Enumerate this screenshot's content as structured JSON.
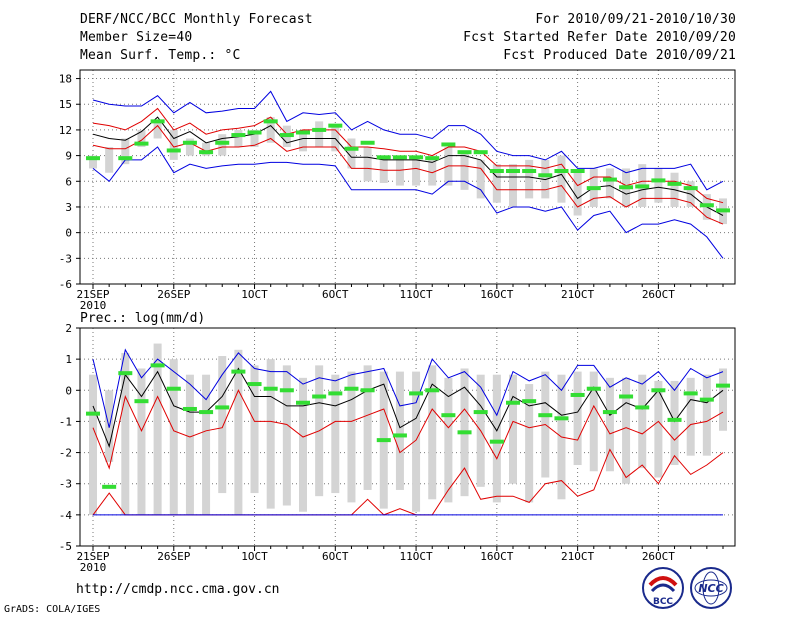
{
  "header": {
    "title": "DERF/NCC/BCC Monthly Forecast",
    "member_size": "Member Size=40",
    "variable": "Mean Surf. Temp.: °C",
    "period": "For 2010/09/21-2010/10/30",
    "started": "Fcst Started Refer Date 2010/09/20",
    "produced": "Fcst Produced Date 2010/09/21"
  },
  "footer": {
    "url": "http://cmdp.ncc.cma.gov.cn",
    "grads": "GrADS: COLA/IGES",
    "logo_bcc_text": "BCC",
    "logo_ncc_text": "NCC"
  },
  "colors": {
    "box": "#d4d4d4",
    "mean": "#000000",
    "inner_band": "#e00000",
    "outer_band": "#0000e0",
    "observed": "#33dd33",
    "grid": "#777777"
  },
  "chart_data": [
    {
      "type": "line",
      "name": "temperature",
      "title": "Mean Surf. Temp.: °C",
      "xlabel": "",
      "ylabel": "",
      "ylim": [
        -6,
        19
      ],
      "yticks": [
        -6,
        -3,
        0,
        3,
        6,
        9,
        12,
        15,
        18
      ],
      "x": [
        1,
        2,
        3,
        4,
        5,
        6,
        7,
        8,
        9,
        10,
        11,
        12,
        13,
        14,
        15,
        16,
        17,
        18,
        19,
        20,
        21,
        22,
        23,
        24,
        25,
        26,
        27,
        28,
        29,
        30,
        31,
        32,
        33,
        34,
        35,
        36,
        37,
        38,
        39,
        40
      ],
      "xticks": [
        {
          "x": 1,
          "label": "21SEP",
          "sub": "2010"
        },
        {
          "x": 6,
          "label": "26SEP",
          "sub": ""
        },
        {
          "x": 11,
          "label": "1OCT",
          "sub": ""
        },
        {
          "x": 16,
          "label": "6OCT",
          "sub": ""
        },
        {
          "x": 21,
          "label": "11OCT",
          "sub": ""
        },
        {
          "x": 26,
          "label": "16OCT",
          "sub": ""
        },
        {
          "x": 31,
          "label": "21OCT",
          "sub": ""
        },
        {
          "x": 36,
          "label": "26OCT",
          "sub": ""
        }
      ],
      "box_low": [
        7.5,
        7,
        8,
        10,
        11,
        8.5,
        9,
        9,
        9,
        10,
        10,
        10.5,
        10,
        9.5,
        10,
        9.5,
        7.5,
        6,
        5.8,
        5.5,
        5.5,
        5.5,
        5.5,
        5,
        4,
        3.5,
        3,
        4,
        4,
        3.5,
        2,
        3,
        4,
        3,
        3,
        3.5,
        3,
        3,
        1.5,
        1
      ],
      "box_high": [
        9,
        10,
        11,
        12,
        13,
        12,
        11,
        10.5,
        11.5,
        12,
        12,
        13.5,
        12.5,
        12,
        13,
        12.5,
        11,
        10,
        9,
        9,
        9,
        9,
        10,
        9.5,
        8.5,
        8,
        8,
        8.5,
        8.5,
        9,
        7,
        7.5,
        7.5,
        7.5,
        8,
        7.5,
        7,
        6,
        4.5,
        4
      ],
      "series": [
        {
          "name": "upper-blue",
          "values": [
            15.5,
            15,
            14.8,
            14.8,
            16,
            14,
            15.2,
            14,
            14.2,
            14.5,
            14.5,
            16.5,
            13,
            14,
            13.8,
            14,
            12,
            13,
            12,
            11.5,
            11.5,
            11,
            12.5,
            12.5,
            11.5,
            9.5,
            9,
            9,
            8.5,
            9.5,
            7.5,
            7.5,
            8,
            7,
            7.5,
            7.5,
            7.5,
            8,
            5,
            6
          ]
        },
        {
          "name": "upper-red",
          "values": [
            12.8,
            12.5,
            12,
            13,
            14.5,
            12,
            12.8,
            11.5,
            12,
            12.2,
            12.5,
            13.5,
            11.5,
            12,
            12,
            12,
            10,
            10,
            9.8,
            9.5,
            9.5,
            9,
            10,
            10,
            9.5,
            7.8,
            7.8,
            7.8,
            7.5,
            8,
            5.5,
            6.5,
            6.5,
            5.5,
            6,
            6,
            6,
            5.5,
            4,
            3.5
          ]
        },
        {
          "name": "mean",
          "values": [
            11.5,
            11,
            10.8,
            11.8,
            13.5,
            11,
            11.8,
            10.5,
            11,
            11.2,
            11.5,
            12.5,
            10.5,
            11,
            11,
            11,
            8.8,
            8.8,
            8.5,
            8.5,
            8.5,
            8.2,
            9,
            9,
            8.5,
            6.5,
            6.5,
            6.5,
            6.2,
            6.8,
            4,
            5.3,
            5.5,
            4.5,
            5,
            5.3,
            5,
            4.5,
            3,
            2
          ]
        },
        {
          "name": "lower-red",
          "values": [
            10.2,
            9.8,
            9.8,
            10.8,
            12.5,
            10,
            10.5,
            9.5,
            10,
            10,
            10.2,
            11,
            9.5,
            10,
            10,
            10,
            7.5,
            7.5,
            7.3,
            7.3,
            7.5,
            7,
            7.8,
            7.8,
            7.5,
            5,
            5,
            5,
            5,
            5.5,
            3,
            4,
            4.2,
            3,
            4,
            4,
            4,
            3.5,
            1.8,
            1
          ]
        },
        {
          "name": "lower-blue",
          "values": [
            7.5,
            6,
            8.5,
            8.5,
            10,
            7,
            8,
            7.5,
            7.8,
            8,
            8,
            8.2,
            8.2,
            8,
            8,
            7.8,
            5,
            5,
            5,
            5,
            5,
            4.5,
            6,
            6,
            5,
            2.3,
            3,
            3,
            2.5,
            3,
            0.3,
            2,
            2.5,
            0,
            1,
            1,
            1.5,
            1,
            -0.5,
            -3
          ]
        },
        {
          "name": "observed",
          "values": [
            8.7,
            null,
            8.7,
            10.4,
            13,
            9.6,
            10.5,
            9.4,
            10.5,
            11.4,
            11.7,
            13,
            11.4,
            11.7,
            12,
            12.5,
            9.8,
            10.5,
            8.8,
            8.8,
            8.8,
            8.7,
            10.3,
            9.4,
            9.4,
            7.2,
            7.2,
            7.2,
            6.7,
            7.2,
            7.2,
            5.2,
            6.2,
            5.3,
            5.4,
            6.1,
            5.7,
            5.2,
            3.2,
            2.6
          ]
        }
      ]
    },
    {
      "type": "line",
      "name": "precipitation",
      "title": "Prec.: log(mm/d)",
      "xlabel": "",
      "ylabel": "",
      "ylim": [
        -5,
        2
      ],
      "yticks": [
        -5,
        -4,
        -3,
        -2,
        -1,
        0,
        1,
        2
      ],
      "x": [
        1,
        2,
        3,
        4,
        5,
        6,
        7,
        8,
        9,
        10,
        11,
        12,
        13,
        14,
        15,
        16,
        17,
        18,
        19,
        20,
        21,
        22,
        23,
        24,
        25,
        26,
        27,
        28,
        29,
        30,
        31,
        32,
        33,
        34,
        35,
        36,
        37,
        38,
        39,
        40
      ],
      "xticks": [
        {
          "x": 1,
          "label": "21SEP",
          "sub": "2010"
        },
        {
          "x": 6,
          "label": "26SEP",
          "sub": ""
        },
        {
          "x": 11,
          "label": "1OCT",
          "sub": ""
        },
        {
          "x": 16,
          "label": "6OCT",
          "sub": ""
        },
        {
          "x": 21,
          "label": "11OCT",
          "sub": ""
        },
        {
          "x": 26,
          "label": "16OCT",
          "sub": ""
        },
        {
          "x": 31,
          "label": "21OCT",
          "sub": ""
        },
        {
          "x": 36,
          "label": "26OCT",
          "sub": ""
        }
      ],
      "box_low": [
        -4,
        -2.3,
        -4,
        -4,
        -4,
        -4,
        -4,
        -4,
        -3.3,
        -4,
        -3.3,
        -3.8,
        -3.7,
        -3.9,
        -3.4,
        -3.3,
        -3.6,
        -3.2,
        -3.8,
        -3.2,
        -3.9,
        -3.5,
        -3.6,
        -3.4,
        -3.1,
        -3.6,
        -3,
        -3.6,
        -2.8,
        -3.5,
        -2.4,
        -2.6,
        -2.6,
        -3,
        -2.5,
        -2.8,
        -2.4,
        -2.1,
        -2.1,
        -1.3
      ],
      "box_high": [
        0.5,
        0,
        1.2,
        0.7,
        1.5,
        1,
        0.5,
        0.5,
        1.1,
        1.3,
        0.8,
        1,
        0.8,
        0.4,
        0.8,
        0.5,
        0.6,
        0.8,
        0.6,
        0.6,
        0.6,
        0.8,
        0.4,
        0.7,
        0.5,
        0.5,
        0.5,
        0.2,
        0.6,
        0.5,
        0.6,
        0.6,
        0.4,
        0.4,
        0.5,
        0.3,
        0.3,
        0.4,
        0.5,
        0.7
      ],
      "series": [
        {
          "name": "upper-blue",
          "values": [
            1,
            -1.2,
            1.3,
            0.4,
            1,
            0.6,
            0.2,
            -0.3,
            0.5,
            1.2,
            0.7,
            0.6,
            0.6,
            0.2,
            0.4,
            0.3,
            0.5,
            0.6,
            0.7,
            -0.5,
            -0.4,
            1,
            0.4,
            0.6,
            0.1,
            -0.8,
            0.6,
            0.3,
            0.5,
            0,
            0.8,
            0.8,
            0.1,
            0.4,
            0.2,
            0.6,
            0,
            0.7,
            0.4,
            0.6
          ]
        },
        {
          "name": "mean",
          "values": [
            -0.5,
            -1.8,
            0.5,
            -0.2,
            0.6,
            -0.5,
            -0.7,
            -0.7,
            -0.2,
            0.7,
            -0.2,
            -0.2,
            -0.5,
            -0.5,
            -0.4,
            -0.5,
            -0.3,
            0,
            0.2,
            -1.2,
            -0.9,
            0.2,
            -0.2,
            0.1,
            -0.5,
            -1.3,
            -0.2,
            -0.5,
            -0.4,
            -0.8,
            -0.7,
            0.1,
            -0.8,
            -0.4,
            -0.6,
            0,
            -1,
            -0.3,
            -0.4,
            0
          ]
        },
        {
          "name": "upper-red",
          "values": [
            -1.2,
            -2.5,
            -0.2,
            -1.3,
            -0.2,
            -1.3,
            -1.5,
            -1.3,
            -1.2,
            0,
            -1,
            -1,
            -1.1,
            -1.5,
            -1.3,
            -1,
            -1,
            -0.8,
            -0.6,
            -2,
            -1.6,
            -0.6,
            -1.2,
            -0.6,
            -1.3,
            -2.2,
            -1,
            -1.2,
            -1.1,
            -1.5,
            -1.6,
            -0.5,
            -1.4,
            -1.2,
            -1.4,
            -1,
            -1.6,
            -1.1,
            -1,
            -0.7
          ]
        },
        {
          "name": "lower-red",
          "values": [
            -4,
            -3.3,
            -4,
            -4,
            -4,
            -4,
            -4,
            -4,
            -4,
            -4,
            -4,
            -4,
            -4,
            -4,
            -4,
            -4,
            -4,
            -3.5,
            -4,
            -3.8,
            -4,
            -4,
            -3.2,
            -2.5,
            -3.5,
            -3.4,
            -3.4,
            -3.6,
            -3,
            -2.9,
            -3.4,
            -3.2,
            -1.9,
            -2.8,
            -2.4,
            -3,
            -2.1,
            -2.7,
            -2.4,
            -2
          ]
        },
        {
          "name": "lower-blue",
          "values": [
            -4,
            -4,
            -4,
            -4,
            -4,
            -4,
            -4,
            -4,
            -4,
            -4,
            -4,
            -4,
            -4,
            -4,
            -4,
            -4,
            -4,
            -4,
            -4,
            -4,
            -4,
            -4,
            -4,
            -4,
            -4,
            -4,
            -4,
            -4,
            -4,
            -4,
            -4,
            -4,
            -4,
            -4,
            -4,
            -4,
            -4,
            -4,
            -4,
            -4
          ]
        },
        {
          "name": "observed",
          "values": [
            -0.75,
            -3.1,
            0.55,
            -0.35,
            0.8,
            0.05,
            -0.6,
            -0.7,
            -0.55,
            0.6,
            0.2,
            0.05,
            0,
            -0.4,
            -0.2,
            -0.1,
            0.05,
            0,
            -1.6,
            -1.45,
            -0.1,
            0,
            -0.8,
            -1.35,
            -0.7,
            -1.65,
            -0.4,
            -0.35,
            -0.8,
            -0.9,
            -0.15,
            0.05,
            -0.7,
            -0.2,
            -0.55,
            0,
            -0.95,
            -0.1,
            -0.3,
            0.15
          ]
        }
      ]
    }
  ]
}
